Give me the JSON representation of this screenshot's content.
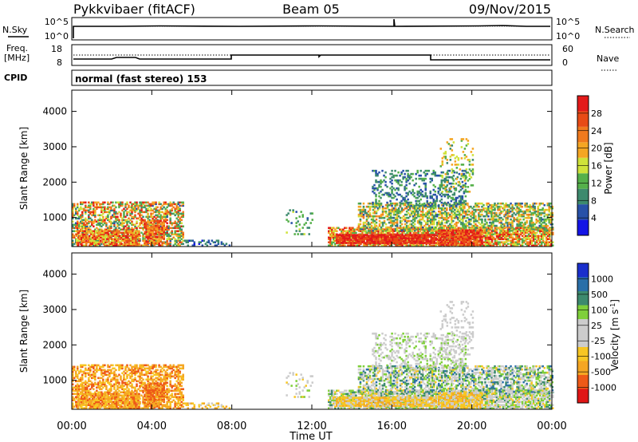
{
  "header": {
    "station": "Pykkvibaer (fitACF)",
    "beam": "Beam 05",
    "date": "09/Nov/2015"
  },
  "top_panels": {
    "nsky_label": "N.Sky",
    "nsearch_label": "N.Search",
    "nsky_ticks": [
      "10^5",
      "10^0"
    ],
    "nsearch_ticks": [
      "10^5",
      "10^0"
    ],
    "freq_label": "Freq.",
    "freq_unit": "[MHz]",
    "freq_ticks": [
      "18",
      "8"
    ],
    "nave_label": "Nave",
    "nave_ticks": [
      "60",
      "0"
    ],
    "cpid_label": "CPID",
    "cpid_text": "normal (fast stereo) 153"
  },
  "colors": {
    "power": [
      "#1414e6",
      "#2851a8",
      "#3d8a6e",
      "#55b04a",
      "#cfe23a",
      "#f5a623",
      "#f07a1e",
      "#e84b16",
      "#e31a1a"
    ],
    "velocity": [
      "#e01616",
      "#ee5a18",
      "#f5a623",
      "#f7c623",
      "#cccccc",
      "#cccccc",
      "#7fcf3a",
      "#3d8a6e",
      "#2a6fa8",
      "#1a2fcc"
    ]
  },
  "chart_data": [
    {
      "type": "heatmap",
      "name": "power",
      "xlabel": "",
      "ylabel": "Slant Range [km]",
      "x_ticks": [
        "00:00",
        "04:00",
        "08:00",
        "12:00",
        "16:00",
        "20:00",
        "00:00"
      ],
      "xlim_hours": [
        0,
        24
      ],
      "ylim_km": [
        180,
        4600
      ],
      "y_ticks": [
        1000,
        2000,
        3000,
        4000
      ],
      "colorbar_label": "Power [dB]",
      "colorbar_ticks": [
        "4",
        "8",
        "12",
        "16",
        "20",
        "24",
        "28"
      ],
      "colorbar_range": [
        0,
        30
      ]
    },
    {
      "type": "heatmap",
      "name": "velocity",
      "xlabel": "Time UT",
      "ylabel": "Slant Range [km]",
      "x_ticks": [
        "00:00",
        "04:00",
        "08:00",
        "12:00",
        "16:00",
        "20:00",
        "00:00"
      ],
      "xlim_hours": [
        0,
        24
      ],
      "ylim_km": [
        180,
        4600
      ],
      "y_ticks": [
        1000,
        2000,
        3000,
        4000
      ],
      "colorbar_label": "Velocity [m s^-1]",
      "colorbar_ticks": [
        "-1000",
        "-500",
        "-100",
        "-25",
        "25",
        "100",
        "500",
        "1000"
      ]
    }
  ]
}
